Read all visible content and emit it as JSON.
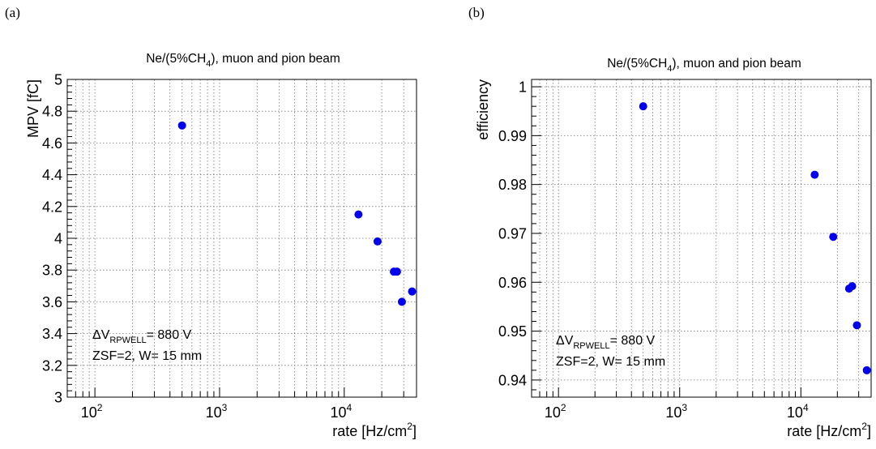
{
  "panels": [
    {
      "tag": "(a)"
    },
    {
      "tag": "(b)"
    }
  ],
  "colors": {
    "marker": "#0000ee",
    "grid": "#777777"
  },
  "chart_data": [
    {
      "type": "scatter",
      "title": "Ne/(5%CH4), muon and pion beam",
      "title_parts": {
        "pre": "Ne/(5%CH",
        "sub": "4",
        "post": "), muon and pion beam"
      },
      "xlabel": "rate [Hz/cm2]",
      "xlabel_parts": {
        "pre": "rate [Hz/cm",
        "sup": "2",
        "post": "]"
      },
      "ylabel": "MPV [fC]",
      "x_scale": "log",
      "xlim": [
        60,
        38000
      ],
      "ylim": [
        3,
        5
      ],
      "grid": true,
      "x_ticks": [
        {
          "value": 100,
          "base": "10",
          "exp": "2"
        },
        {
          "value": 1000,
          "base": "10",
          "exp": "3"
        },
        {
          "value": 10000,
          "base": "10",
          "exp": "4"
        }
      ],
      "y_ticks": [
        {
          "value": 3,
          "label": "3"
        },
        {
          "value": 3.2,
          "label": "3.2"
        },
        {
          "value": 3.4,
          "label": "3.4"
        },
        {
          "value": 3.6,
          "label": "3.6"
        },
        {
          "value": 3.8,
          "label": "3.8"
        },
        {
          "value": 4,
          "label": "4"
        },
        {
          "value": 4.2,
          "label": "4.2"
        },
        {
          "value": 4.4,
          "label": "4.4"
        },
        {
          "value": 4.6,
          "label": "4.6"
        },
        {
          "value": 4.8,
          "label": "4.8"
        },
        {
          "value": 5,
          "label": "5"
        }
      ],
      "annotation": {
        "line1": {
          "pre": "ΔV",
          "sub": "RPWELL",
          "post": "= 880 V"
        },
        "line2": "ZSF=2, W= 15 mm"
      },
      "points": [
        {
          "x": 500,
          "y": 4.71
        },
        {
          "x": 13000,
          "y": 4.15
        },
        {
          "x": 18500,
          "y": 3.98
        },
        {
          "x": 25000,
          "y": 3.79
        },
        {
          "x": 26500,
          "y": 3.79
        },
        {
          "x": 29000,
          "y": 3.6
        },
        {
          "x": 35000,
          "y": 3.665
        }
      ]
    },
    {
      "type": "scatter",
      "title": "Ne/(5%CH4), muon and pion beam",
      "title_parts": {
        "pre": "Ne/(5%CH",
        "sub": "4",
        "post": "), muon and pion beam"
      },
      "xlabel": "rate [Hz/cm2]",
      "xlabel_parts": {
        "pre": "rate [Hz/cm",
        "sup": "2",
        "post": "]"
      },
      "ylabel": "efficiency",
      "x_scale": "log",
      "xlim": [
        60,
        38000
      ],
      "ylim": [
        0.9365,
        1.0015
      ],
      "grid": true,
      "x_ticks": [
        {
          "value": 100,
          "base": "10",
          "exp": "2"
        },
        {
          "value": 1000,
          "base": "10",
          "exp": "3"
        },
        {
          "value": 10000,
          "base": "10",
          "exp": "4"
        }
      ],
      "y_ticks": [
        {
          "value": 0.94,
          "label": "0.94"
        },
        {
          "value": 0.95,
          "label": "0.95"
        },
        {
          "value": 0.96,
          "label": "0.96"
        },
        {
          "value": 0.97,
          "label": "0.97"
        },
        {
          "value": 0.98,
          "label": "0.98"
        },
        {
          "value": 0.99,
          "label": "0.99"
        },
        {
          "value": 1,
          "label": "1"
        }
      ],
      "annotation": {
        "line1": {
          "pre": "ΔV",
          "sub": "RPWELL",
          "post": "= 880 V"
        },
        "line2": "ZSF=2, W= 15 mm"
      },
      "points": [
        {
          "x": 500,
          "y": 0.996
        },
        {
          "x": 13000,
          "y": 0.982
        },
        {
          "x": 18500,
          "y": 0.9693
        },
        {
          "x": 25000,
          "y": 0.9587
        },
        {
          "x": 26500,
          "y": 0.9592
        },
        {
          "x": 29000,
          "y": 0.9512
        },
        {
          "x": 35000,
          "y": 0.942
        }
      ]
    }
  ]
}
